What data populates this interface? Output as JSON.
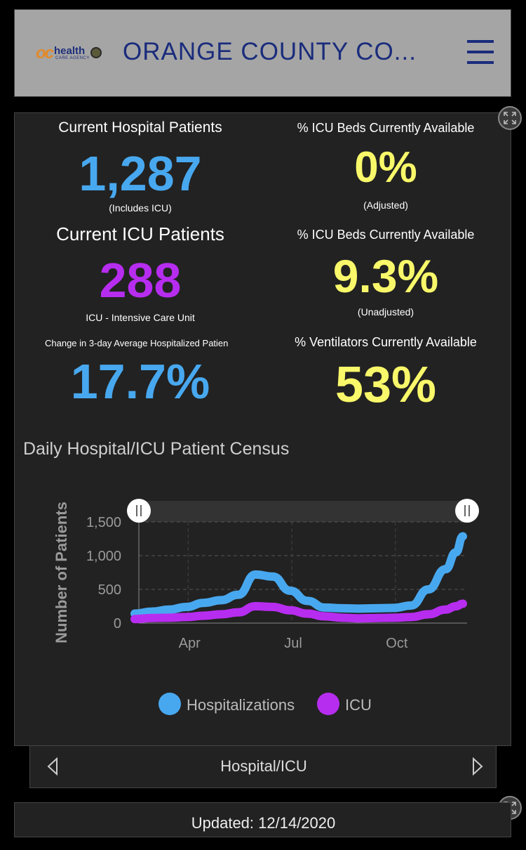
{
  "header": {
    "title": "ORANGE COUNTY CO...",
    "logo": {
      "oc": "oc",
      "health": "health",
      "agency": "CARE AGENCY"
    }
  },
  "stats": {
    "hospital": {
      "label": "Current Hospital Patients",
      "value": "1,287",
      "sub": "(Includes ICU)"
    },
    "icu_avail_adj": {
      "label": "% ICU Beds Currently Available",
      "value": "0%",
      "sub": "(Adjusted)"
    },
    "icu": {
      "label": "Current ICU Patients",
      "value": "288",
      "sub": "ICU - Intensive Care Unit"
    },
    "icu_avail_unadj": {
      "label": "% ICU Beds Currently Available",
      "value": "9.3%",
      "sub": "(Unadjusted)"
    },
    "change": {
      "label": "Change in 3-day Average Hospitalized Patien",
      "value": "17.7%"
    },
    "ventilators": {
      "label": "% Ventilators Currently Available",
      "value": "53%"
    }
  },
  "colors": {
    "blue": "#48a8ef",
    "purple": "#b72df0",
    "yellow": "#f8f86a"
  },
  "chart_data": {
    "type": "line",
    "title": "Daily Hospital/ICU Patient Census",
    "ylabel": "Number of Patients",
    "xlabel": "",
    "ylim": [
      0,
      1700
    ],
    "yticks": [
      0,
      500,
      1000,
      1500
    ],
    "ytick_labels": [
      "0",
      "500",
      "1,000",
      "1,500"
    ],
    "xticks": [
      "Apr",
      "Jul",
      "Oct"
    ],
    "legend": [
      "Hospitalizations",
      "ICU"
    ],
    "x_months_from_mar": [
      0,
      0.5,
      1,
      1.5,
      2,
      2.5,
      3,
      3.5,
      4,
      4.5,
      5,
      5.5,
      6,
      6.5,
      7,
      7.5,
      8,
      8.5,
      9,
      9.3,
      9.5
    ],
    "series": [
      {
        "name": "Hospitalizations",
        "values": [
          140,
          170,
          200,
          240,
          300,
          340,
          420,
          720,
          690,
          480,
          330,
          230,
          220,
          215,
          220,
          225,
          260,
          500,
          800,
          1050,
          1287
        ]
      },
      {
        "name": "ICU",
        "values": [
          60,
          75,
          80,
          90,
          110,
          130,
          160,
          250,
          240,
          190,
          140,
          100,
          80,
          70,
          75,
          80,
          90,
          130,
          200,
          250,
          288
        ]
      }
    ]
  },
  "nav": {
    "label": "Hospital/ICU"
  },
  "footer": {
    "updated": "Updated: 12/14/2020"
  }
}
